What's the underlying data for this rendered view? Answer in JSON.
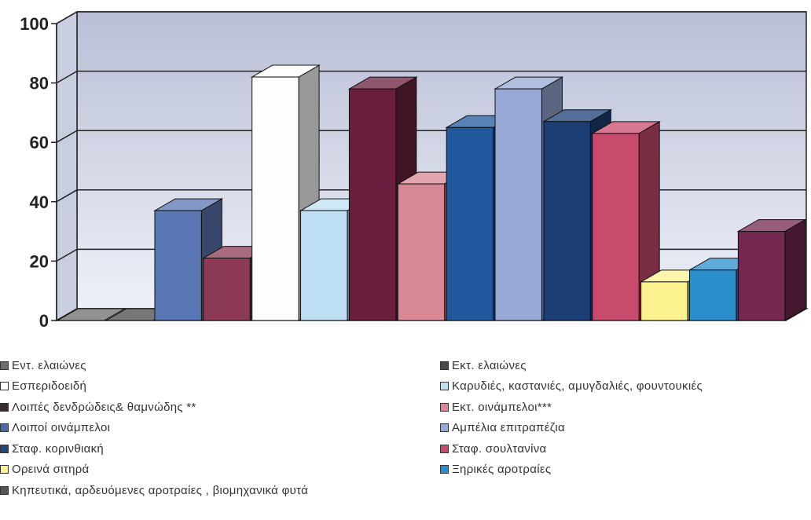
{
  "chart_data": {
    "type": "bar",
    "style": "3d-clustered",
    "title": "",
    "xlabel": "",
    "ylabel": "",
    "ylim": [
      0,
      100
    ],
    "yticks": [
      "0",
      "20",
      "40",
      "60",
      "80",
      "100"
    ],
    "grid": true,
    "legend_position": "bottom",
    "series": [
      {
        "name": "Εντ. ελαιώνες",
        "value": 0,
        "color": "#6d6d6d"
      },
      {
        "name": "Εκτ. ελαιώνες",
        "value": 0,
        "color": "#4a4a4a"
      },
      {
        "name": "Εσπεριδοειδή",
        "value": 37,
        "color": "#5a76b3"
      },
      {
        "name": "Καρυδιές, καστανιές, αμυγδαλιές, φουντουκιές",
        "value": 21,
        "color": "#8c3a56"
      },
      {
        "name": "Λοιπές δενδρώδεις& θαμνώδης **",
        "value": 82,
        "color": "#fdfdfd"
      },
      {
        "name": "Εκτ. οινάμπελοι***",
        "value": 37,
        "color": "#bfe0f4"
      },
      {
        "name": "Λοιποί οινάμπελοι",
        "value": 78,
        "color": "#6a1f3e"
      },
      {
        "name": "Αμπέλια επιτραπέζια",
        "value": 46,
        "color": "#d98896"
      },
      {
        "name": "Σταφ. κορινθιακή",
        "value": 65,
        "color": "#20589e"
      },
      {
        "name": "Σταφ. σουλτανίνα",
        "value": 78,
        "color": "#97a9d4"
      },
      {
        "name": "Ορεινά σιτηρά",
        "value": 67,
        "color": "#1c3e74"
      },
      {
        "name": "Ξηρικές αροτραίες",
        "value": 63,
        "color": "#c84b6e"
      },
      {
        "name": "Κηπευτικά, αρδευόμενες αροτραίες , βιομηχανικά φυτά",
        "value": 13,
        "color": "#fbf18f"
      },
      {
        "name": "",
        "value": 17,
        "color": "#2a8fcc"
      },
      {
        "name": "",
        "value": 30,
        "color": "#74284f"
      }
    ]
  },
  "legend": {
    "left": [
      {
        "label": "Εντ. ελαιώνες",
        "color": "#6d6d6d"
      },
      {
        "label": "Εσπεριδοειδή",
        "color": "#ffffff"
      },
      {
        "label": "Λοιπές δενδρώδεις& θαμνώδης **",
        "color": "#3a2a30"
      },
      {
        "label": "Λοιποί οινάμπελοι",
        "color": "#4f6aa8"
      },
      {
        "label": "Σταφ. κορινθιακή",
        "color": "#23467e"
      },
      {
        "label": "Ορεινά σιτηρά",
        "color": "#fbf18f"
      },
      {
        "label": "Κηπευτικά, αρδευόμενες αροτραίες , βιομηχανικά φυτά",
        "color": "#555555"
      }
    ],
    "right": [
      {
        "label": "Εκτ. ελαιώνες",
        "color": "#4a4a4a"
      },
      {
        "label": "Καρυδιές, καστανιές, αμυγδαλιές, φουντουκιές",
        "color": "#bfe0f4"
      },
      {
        "label": "Εκτ. οινάμπελοι***",
        "color": "#d98896"
      },
      {
        "label": "Αμπέλια επιτραπέζια",
        "color": "#97a9d4"
      },
      {
        "label": "Σταφ. σουλτανίνα",
        "color": "#c84b6e"
      },
      {
        "label": "Ξηρικές αροτραίες",
        "color": "#2a8fcc"
      }
    ]
  }
}
